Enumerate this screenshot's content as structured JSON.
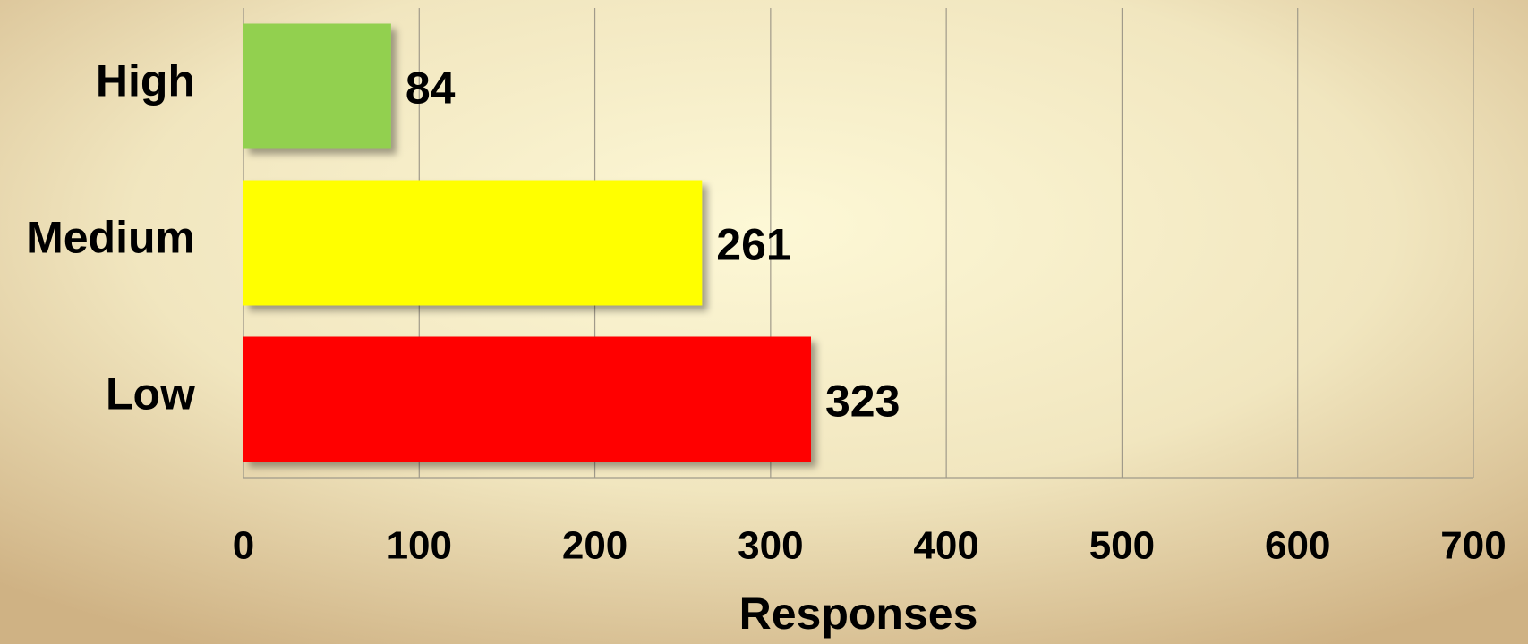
{
  "chart_data": {
    "type": "bar",
    "orientation": "horizontal",
    "categories": [
      "High",
      "Medium",
      "Low"
    ],
    "values": [
      84,
      261,
      323
    ],
    "colors": [
      "#92d050",
      "#ffff00",
      "#ff0000"
    ],
    "x_label": "Responses",
    "xlim": [
      0,
      700
    ],
    "xticks": [
      0,
      100,
      200,
      300,
      400,
      500,
      600,
      700
    ],
    "grid": true
  }
}
